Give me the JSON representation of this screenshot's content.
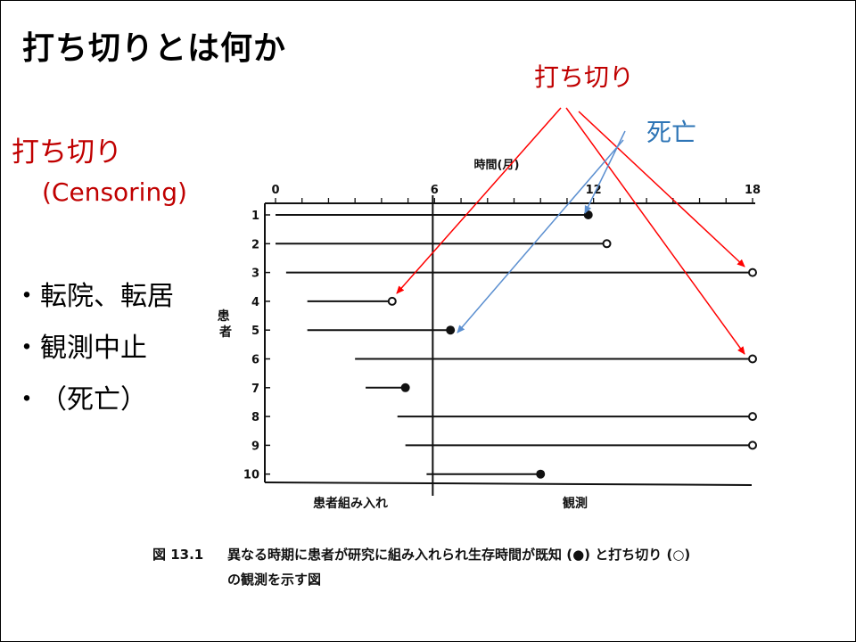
{
  "slide": {
    "title": "打ち切りとは何か",
    "left_title": "打ち切り",
    "left_subtitle": "(Censoring)",
    "bullets": [
      {
        "marker": "・",
        "text": "転院、転居"
      },
      {
        "marker": "・",
        "text": "観測中止"
      },
      {
        "marker": "・",
        "text": "（死亡）"
      }
    ],
    "annotation_censoring": "打ち切り",
    "annotation_death": "死亡",
    "caption_figure": "図 13.1",
    "caption_line1": "異なる時期に患者が研究に組み入れられ生存時間が既知 (●) と打ち切り (○)",
    "caption_line2": "の観測を示す図"
  },
  "colors": {
    "censoring_red": "#c00000",
    "death_blue": "#2e75b6",
    "arrow_red": "#ff0000",
    "arrow_blue": "#5b8fd0"
  },
  "figure": {
    "time_label": "時間(月)",
    "patient_label": "患者",
    "enrollment_label": "患者組み入れ",
    "observation_label": "観測",
    "x_ticks": [
      0,
      6,
      12,
      18
    ],
    "x_range": [
      0,
      18
    ],
    "enrollment_end": 6,
    "patients": [
      {
        "id": "1",
        "start": 0.0,
        "end": 11.8,
        "event": "death"
      },
      {
        "id": "2",
        "start": 0.0,
        "end": 12.5,
        "event": "censored"
      },
      {
        "id": "3",
        "start": 0.4,
        "end": 18.0,
        "event": "censored"
      },
      {
        "id": "4",
        "start": 1.2,
        "end": 4.4,
        "event": "censored"
      },
      {
        "id": "5",
        "start": 1.2,
        "end": 6.6,
        "event": "death"
      },
      {
        "id": "6",
        "start": 3.0,
        "end": 18.0,
        "event": "censored"
      },
      {
        "id": "7",
        "start": 3.4,
        "end": 4.9,
        "event": "death"
      },
      {
        "id": "8",
        "start": 4.6,
        "end": 18.0,
        "event": "censored"
      },
      {
        "id": "9",
        "start": 4.9,
        "end": 18.0,
        "event": "censored"
      },
      {
        "id": "10",
        "start": 5.7,
        "end": 10.0,
        "event": "death"
      }
    ]
  }
}
